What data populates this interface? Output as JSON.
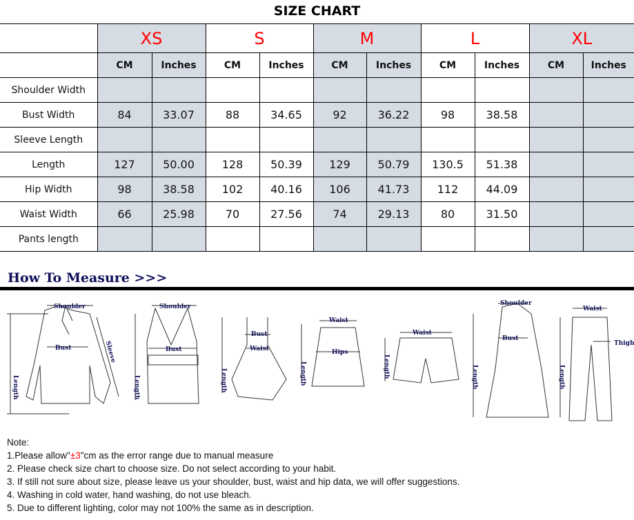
{
  "title": "SIZE CHART",
  "sizes": [
    "XS",
    "S",
    "M",
    "L",
    "XL"
  ],
  "units": [
    "CM",
    "Inches"
  ],
  "colors": {
    "size_label": "#ff0000",
    "shaded": "#d6dce4",
    "heading": "#10105a"
  },
  "rows": [
    {
      "label": "Shoulder Width",
      "values": [
        "",
        "",
        "",
        "",
        "",
        "",
        "",
        "",
        "",
        ""
      ]
    },
    {
      "label": "Bust Width",
      "values": [
        "84",
        "33.07",
        "88",
        "34.65",
        "92",
        "36.22",
        "98",
        "38.58",
        "",
        ""
      ]
    },
    {
      "label": "Sleeve Length",
      "values": [
        "",
        "",
        "",
        "",
        "",
        "",
        "",
        "",
        "",
        ""
      ]
    },
    {
      "label": "Length",
      "values": [
        "127",
        "50.00",
        "128",
        "50.39",
        "129",
        "50.79",
        "130.5",
        "51.38",
        "",
        ""
      ]
    },
    {
      "label": "Hip Width",
      "values": [
        "98",
        "38.58",
        "102",
        "40.16",
        "106",
        "41.73",
        "112",
        "44.09",
        "",
        ""
      ]
    },
    {
      "label": "Waist Width",
      "values": [
        "66",
        "25.98",
        "70",
        "27.56",
        "74",
        "29.13",
        "80",
        "31.50",
        "",
        ""
      ]
    },
    {
      "label": "Pants length",
      "values": [
        "",
        "",
        "",
        "",
        "",
        "",
        "",
        "",
        "",
        ""
      ]
    }
  ],
  "how_to_measure": "How To Measure >>>",
  "labels": {
    "shoulder": "Shoulder",
    "bust": "Bust",
    "length": "Length",
    "sleeve": "Sleeve",
    "waist": "Waist",
    "hips": "Hips",
    "thigh": "Thigh"
  },
  "notes": {
    "heading": "Note:",
    "n1_pre": "1.Please allow\"",
    "n1_red": "±3",
    "n1_post": "\"cm as the error range due to manual measure",
    "n2": "2. Please check size chart to choose size. Do not select according to your habit.",
    "n3": "3. If still not sure about size, please leave us your shoulder, bust, waist and hip data, we will offer suggestions.",
    "n4": "4. Washing in cold water, hand washing, do not use bleach.",
    "n5": "5. Due to different lighting, color may not 100% the same as in description."
  }
}
